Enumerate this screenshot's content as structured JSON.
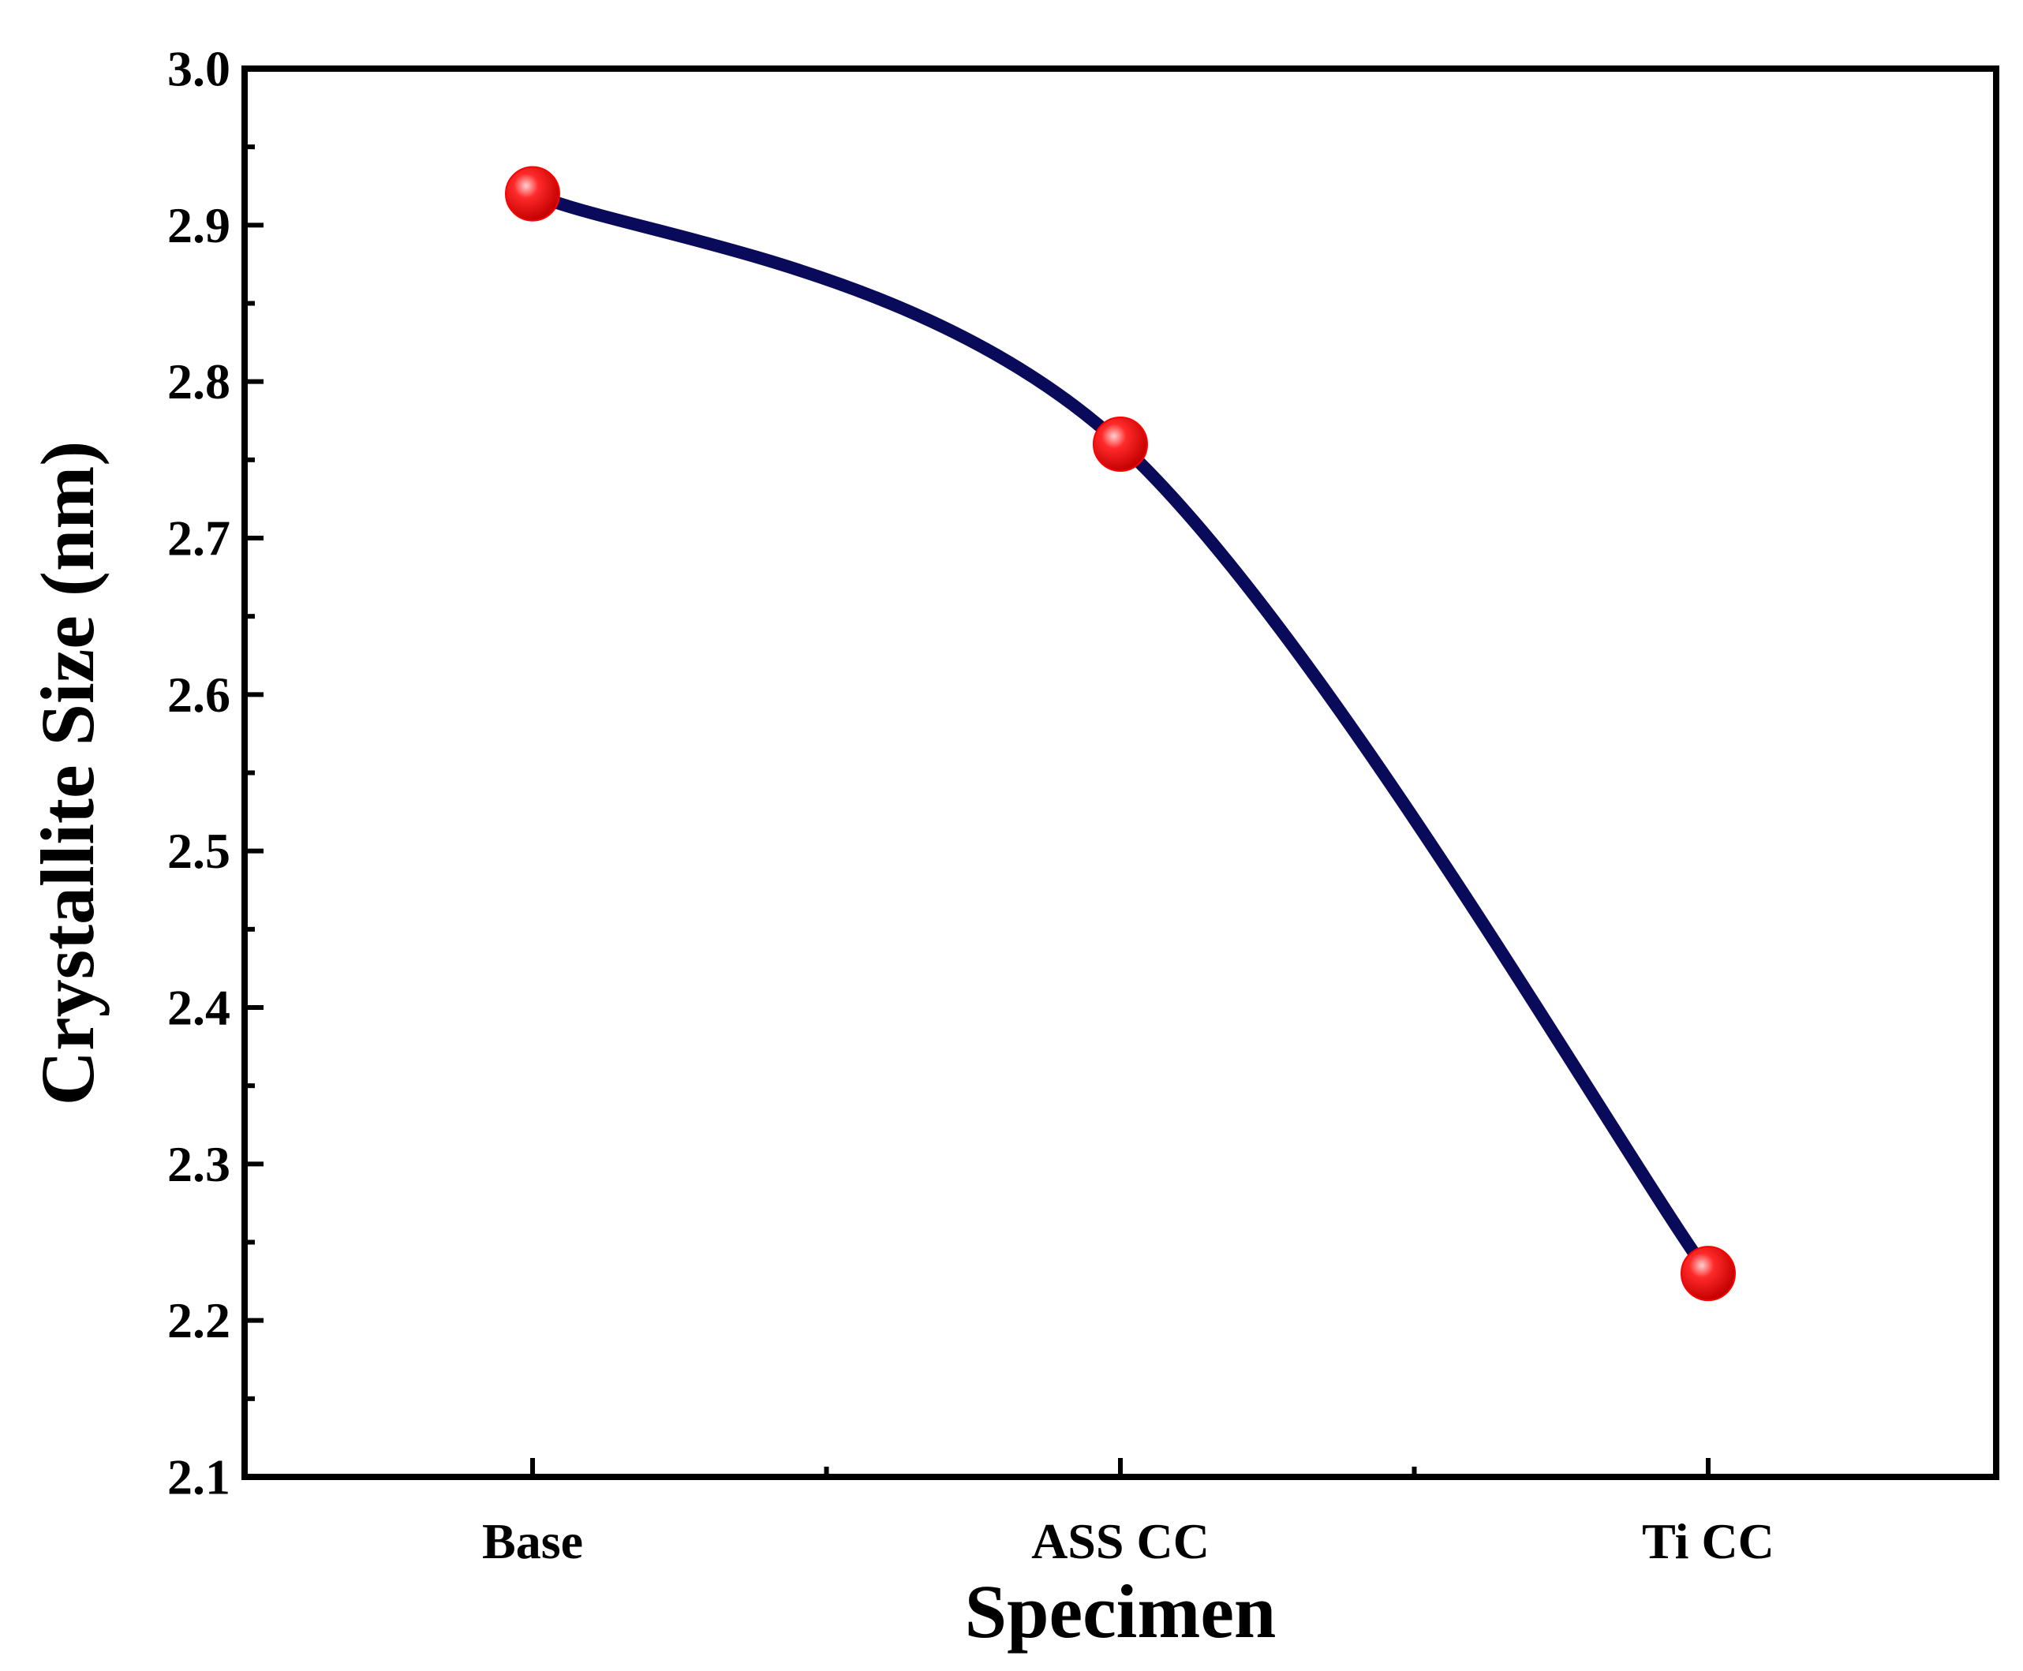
{
  "chart_data": {
    "type": "line",
    "title": "",
    "xlabel": "Specimen",
    "ylabel": "Crystallite Size (nm)",
    "categories": [
      "Base",
      "ASS CC",
      "Ti CC"
    ],
    "series": [
      {
        "name": "Crystallite Size",
        "values": [
          2.92,
          2.76,
          2.23
        ],
        "line_color": "#0a0a5a",
        "marker_color": "#ff0000",
        "smooth": true
      }
    ],
    "ylim": [
      2.1,
      3.0
    ],
    "yticks": [
      "2.1",
      "2.2",
      "2.3",
      "2.4",
      "2.5",
      "2.6",
      "2.7",
      "2.8",
      "2.9",
      "3.0"
    ],
    "grid": false,
    "legend": "none"
  }
}
